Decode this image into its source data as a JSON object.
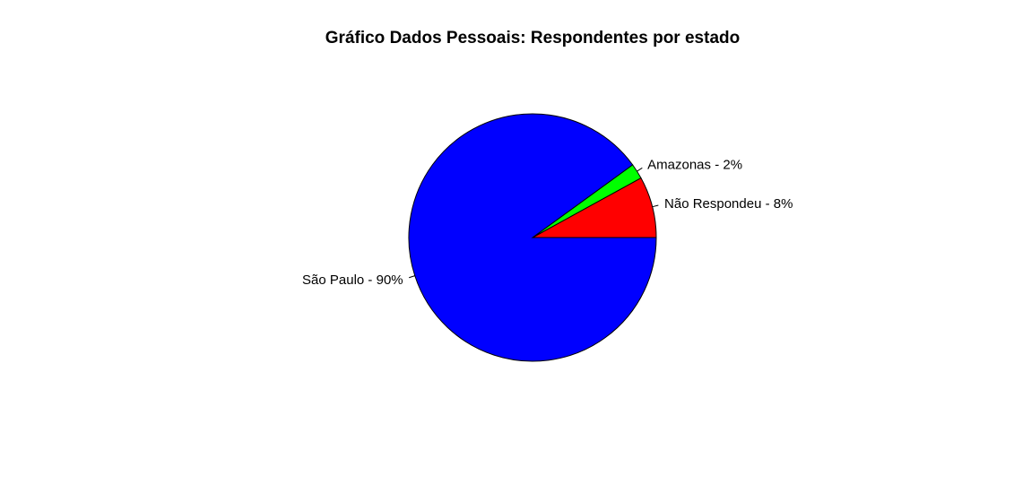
{
  "chart_data": {
    "type": "pie",
    "title": "Gráfico Dados Pessoais: Respondentes por estado",
    "categories": [
      "Não Respondeu",
      "Amazonas",
      "São Paulo"
    ],
    "values": [
      8,
      2,
      90
    ],
    "labels": [
      "Não Respondeu - 8%",
      "Amazonas - 2%",
      "São Paulo - 90%"
    ],
    "colors": [
      "#ff0000",
      "#00ff00",
      "#0000ff"
    ],
    "start_angle_deg": 0,
    "direction": "counterclockwise"
  }
}
